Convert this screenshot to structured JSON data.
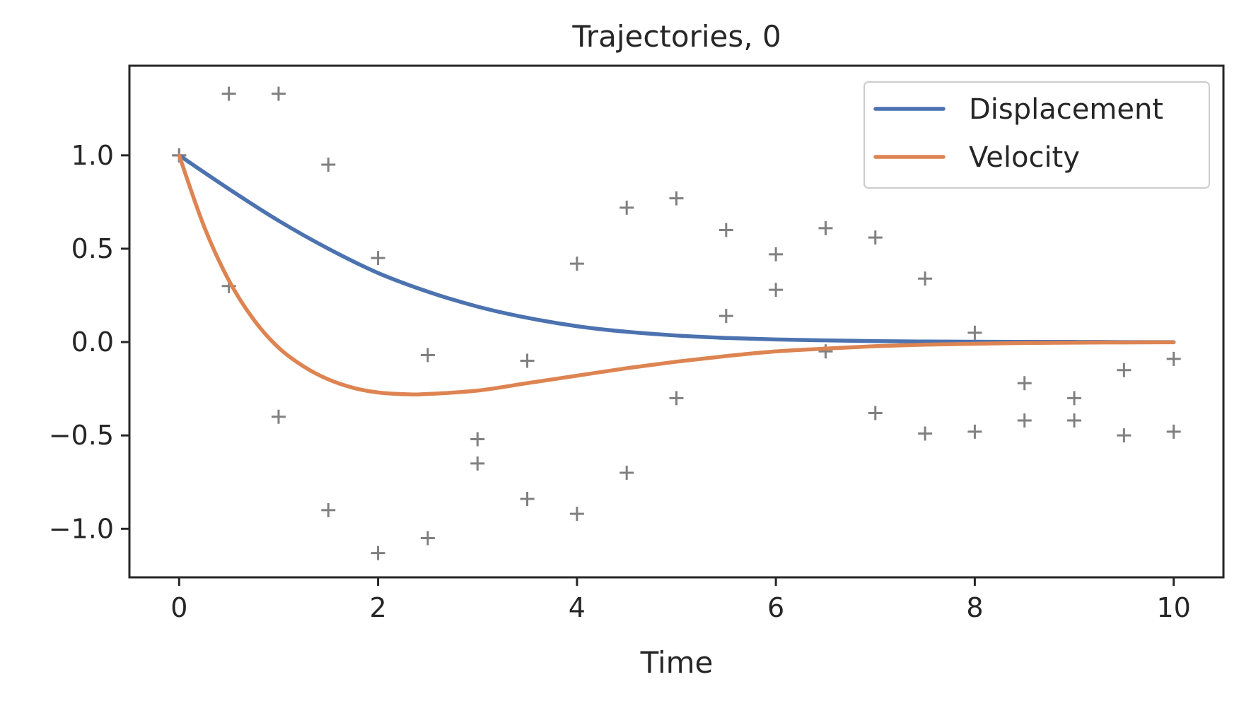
{
  "chart_data": {
    "type": "line",
    "title": "Trajectories, 0",
    "xlabel": "Time",
    "ylabel": "",
    "xlim": [
      -0.5,
      10.5
    ],
    "ylim": [
      -1.26,
      1.48
    ],
    "xticks": [
      0,
      2,
      4,
      6,
      8,
      10
    ],
    "xtick_labels": [
      "0",
      "2",
      "4",
      "6",
      "8",
      "10"
    ],
    "yticks": [
      -1.0,
      -0.5,
      0.0,
      0.5,
      1.0
    ],
    "ytick_labels": [
      "−1.0",
      "−0.5",
      "0.0",
      "0.5",
      "1.0"
    ],
    "grid": false,
    "legend_position": "top-right",
    "legend": [
      "Displacement",
      "Velocity"
    ],
    "series": [
      {
        "name": "Displacement",
        "color": "#4c72b0",
        "style": "line",
        "x": [
          0,
          0.5,
          1,
          1.5,
          2,
          2.5,
          3,
          3.5,
          4,
          4.5,
          5,
          5.5,
          6,
          6.5,
          7,
          7.5,
          8,
          8.5,
          9,
          9.5,
          10
        ],
        "y": [
          1.0,
          0.82,
          0.65,
          0.5,
          0.37,
          0.27,
          0.19,
          0.13,
          0.085,
          0.055,
          0.035,
          0.022,
          0.014,
          0.009,
          0.005,
          0.003,
          0.002,
          0.001,
          0.001,
          0.0,
          0.0
        ]
      },
      {
        "name": "Velocity",
        "color": "#dd8452",
        "style": "line",
        "x": [
          0,
          0.25,
          0.5,
          0.75,
          1,
          1.25,
          1.5,
          1.75,
          2,
          2.3,
          2.5,
          3,
          3.5,
          4,
          4.5,
          5,
          5.5,
          6,
          6.5,
          7,
          7.5,
          8,
          8.5,
          9,
          9.5,
          10
        ],
        "y": [
          1.0,
          0.62,
          0.33,
          0.12,
          -0.03,
          -0.13,
          -0.2,
          -0.245,
          -0.27,
          -0.28,
          -0.278,
          -0.26,
          -0.22,
          -0.18,
          -0.14,
          -0.105,
          -0.075,
          -0.05,
          -0.035,
          -0.022,
          -0.014,
          -0.009,
          -0.005,
          -0.003,
          -0.002,
          -0.001
        ]
      },
      {
        "name": "",
        "color": "#808080",
        "style": "markers-plus",
        "x": [
          0,
          0.5,
          1,
          1.5,
          2,
          2.5,
          3,
          3.5,
          4,
          4.5,
          5,
          5.5,
          6,
          6.5,
          7,
          7.5,
          8,
          8.5,
          9,
          9.5,
          10
        ],
        "y": [
          1.0,
          1.33,
          1.33,
          0.95,
          0.45,
          -0.07,
          -0.52,
          -0.84,
          -0.92,
          -0.7,
          -0.3,
          0.14,
          0.47,
          0.61,
          0.56,
          0.34,
          0.05,
          -0.22,
          -0.42,
          -0.5,
          -0.48
        ]
      },
      {
        "name": "",
        "color": "#808080",
        "style": "markers-plus",
        "x": [
          0,
          0.5,
          1,
          1.5,
          2,
          2.5,
          3,
          3.5,
          4,
          4.5,
          5,
          5.5,
          6,
          6.5,
          7,
          7.5,
          8,
          8.5,
          9,
          9.5,
          10
        ],
        "y": [
          1.0,
          0.3,
          -0.4,
          -0.9,
          -1.13,
          -1.05,
          -0.65,
          -0.1,
          0.42,
          0.72,
          0.77,
          0.6,
          0.28,
          -0.05,
          -0.38,
          -0.49,
          -0.48,
          -0.42,
          -0.3,
          -0.15,
          -0.09
        ]
      }
    ]
  }
}
